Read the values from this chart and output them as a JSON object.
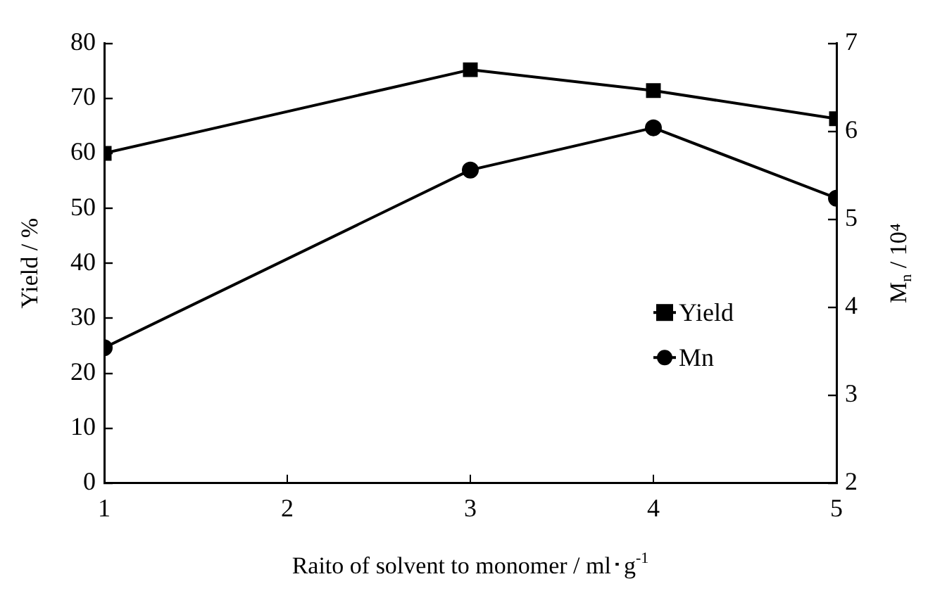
{
  "chart_data": {
    "type": "line",
    "x": [
      1,
      3,
      4,
      5
    ],
    "xlabel": "Raito of solvent to monomer / ml･g$^{-1}$",
    "ylabel": "Yield / %",
    "y2label": "M$_{n}$ / 10⁴",
    "series": [
      {
        "name": "Yield",
        "color": "#000000",
        "values": [
          60,
          75.2,
          71.4,
          66.3
        ],
        "marker": "square"
      },
      {
        "name": "Mn",
        "color": "#000000",
        "values": [
          3.54,
          5.56,
          6.04,
          5.24
        ],
        "marker": "circle",
        "axis": "y2"
      }
    ],
    "xlim": [
      1,
      5
    ],
    "xticks": [
      1,
      2,
      3,
      4,
      5
    ],
    "ylim": [
      0,
      80
    ],
    "yticks": [
      0,
      10,
      20,
      30,
      40,
      50,
      60,
      70,
      80
    ],
    "y2lim": [
      2,
      7
    ],
    "y2ticks": [
      2,
      3,
      4,
      5,
      6,
      7
    ],
    "grid": false,
    "legend": "right",
    "line_style": "solid"
  }
}
